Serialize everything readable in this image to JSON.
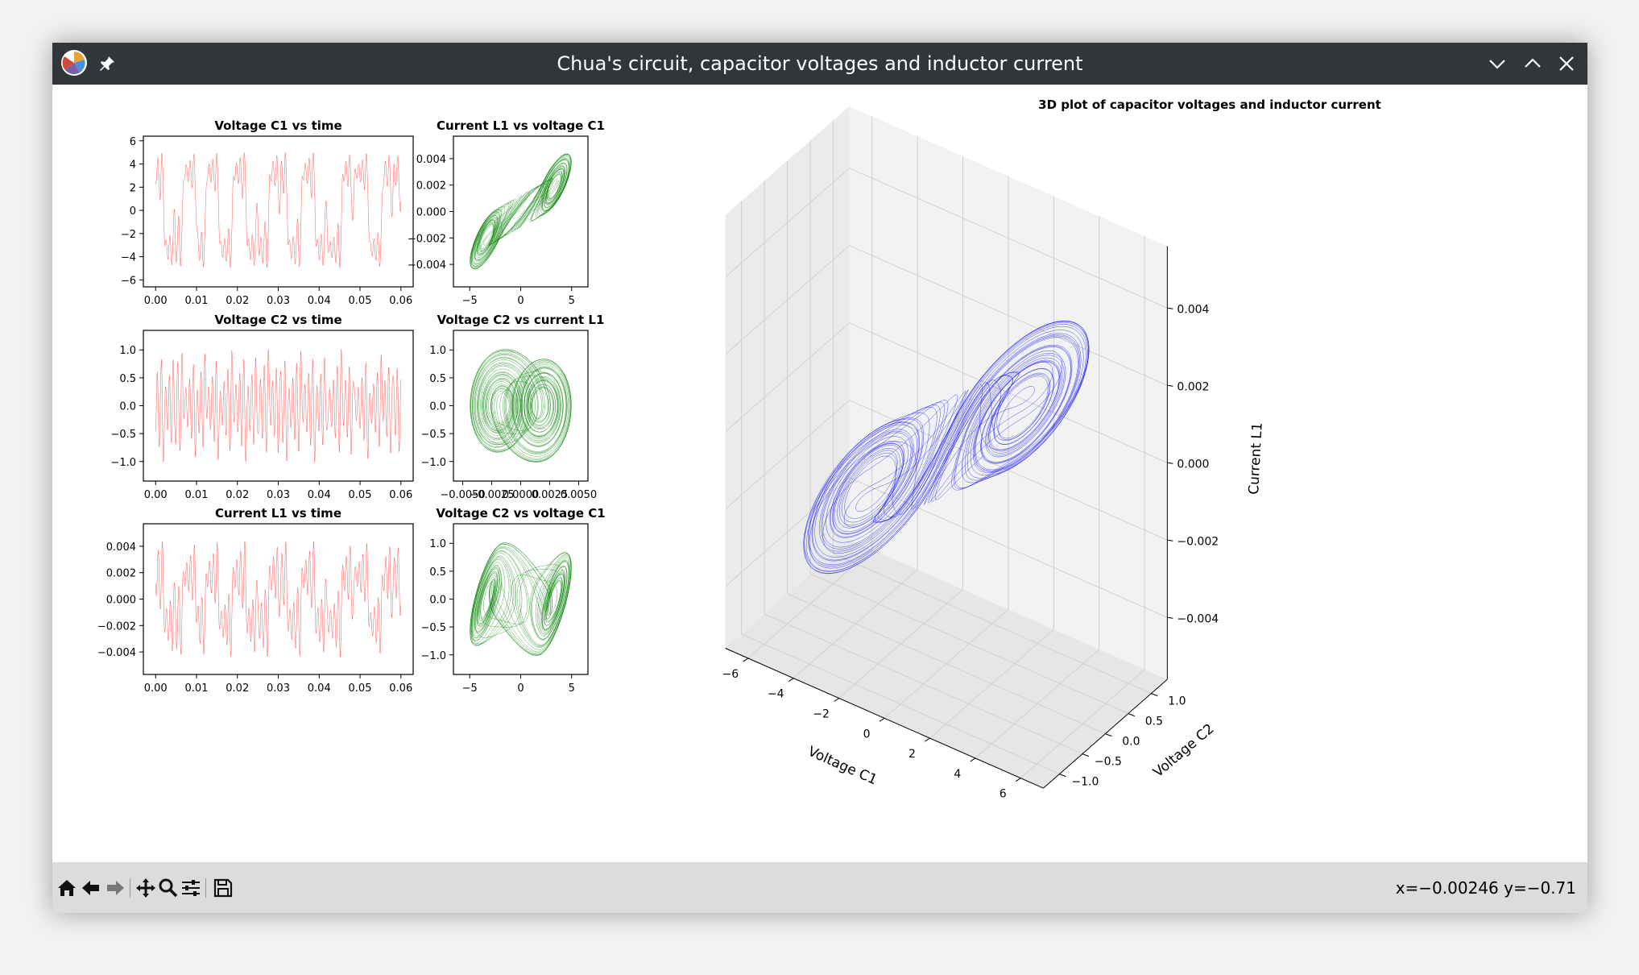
{
  "window": {
    "title": "Chua's circuit, capacitor voltages and inductor current"
  },
  "toolbar": {
    "coords": "x=−0.00246 y=−0.71",
    "tools": [
      "home-icon",
      "back-icon",
      "forward-icon",
      "pan-icon",
      "zoom-icon",
      "configure-icon",
      "save-icon"
    ]
  },
  "colors": {
    "red": "#ff0000",
    "green": "#008000",
    "blue": "#0000ff",
    "titlebar": "#31363b"
  },
  "chart_data": [
    {
      "id": "c1t",
      "type": "line",
      "title": "Voltage C1 vs time",
      "color": "#ff0000",
      "xlim": [
        -0.003,
        0.063
      ],
      "ylim": [
        -6.6,
        6.4
      ],
      "xticks": [
        "0.00",
        "0.01",
        "0.02",
        "0.03",
        "0.04",
        "0.05",
        "0.06"
      ],
      "xtickvals": [
        0,
        0.01,
        0.02,
        0.03,
        0.04,
        0.05,
        0.06
      ],
      "yticks": [
        "−6",
        "−4",
        "−2",
        "0",
        "2",
        "4",
        "6"
      ],
      "ytickvals": [
        -6,
        -4,
        -2,
        0,
        2,
        4,
        6
      ]
    },
    {
      "id": "i1c1",
      "type": "line",
      "title": "Current L1 vs voltage C1",
      "color": "#008000",
      "xlim": [
        -6.6,
        6.6
      ],
      "ylim": [
        -0.0057,
        0.0057
      ],
      "xticks": [
        "−5",
        "0",
        "5"
      ],
      "xtickvals": [
        -5,
        0,
        5
      ],
      "yticks": [
        "−0.004",
        "−0.002",
        "0.000",
        "0.002",
        "0.004"
      ],
      "ytickvals": [
        -0.004,
        -0.002,
        0,
        0.002,
        0.004
      ]
    },
    {
      "id": "c2t",
      "type": "line",
      "title": "Voltage C2 vs time",
      "color": "#ff0000",
      "xlim": [
        -0.003,
        0.063
      ],
      "ylim": [
        -1.35,
        1.35
      ],
      "xticks": [
        "0.00",
        "0.01",
        "0.02",
        "0.03",
        "0.04",
        "0.05",
        "0.06"
      ],
      "xtickvals": [
        0,
        0.01,
        0.02,
        0.03,
        0.04,
        0.05,
        0.06
      ],
      "yticks": [
        "−1.0",
        "−0.5",
        "0.0",
        "0.5",
        "1.0"
      ],
      "ytickvals": [
        -1,
        -0.5,
        0,
        0.5,
        1
      ]
    },
    {
      "id": "c2i1",
      "type": "line",
      "title": "Voltage C2 vs current L1",
      "color": "#008000",
      "xlim": [
        -0.0058,
        0.0058
      ],
      "ylim": [
        -1.35,
        1.35
      ],
      "xticks": [
        "−0.0050",
        "−0.0025",
        "0.0000",
        "0.0025",
        "0.0050"
      ],
      "xtickvals": [
        -0.005,
        -0.0025,
        0,
        0.0025,
        0.005
      ],
      "yticks": [
        "−1.0",
        "−0.5",
        "0.0",
        "0.5",
        "1.0"
      ],
      "ytickvals": [
        -1,
        -0.5,
        0,
        0.5,
        1
      ]
    },
    {
      "id": "i1t",
      "type": "line",
      "title": "Current L1 vs time",
      "color": "#ff0000",
      "xlim": [
        -0.003,
        0.063
      ],
      "ylim": [
        -0.0057,
        0.0057
      ],
      "xticks": [
        "0.00",
        "0.01",
        "0.02",
        "0.03",
        "0.04",
        "0.05",
        "0.06"
      ],
      "xtickvals": [
        0,
        0.01,
        0.02,
        0.03,
        0.04,
        0.05,
        0.06
      ],
      "yticks": [
        "−0.004",
        "−0.002",
        "0.000",
        "0.002",
        "0.004"
      ],
      "ytickvals": [
        -0.004,
        -0.002,
        0,
        0.002,
        0.004
      ]
    },
    {
      "id": "c2c1",
      "type": "line",
      "title": "Voltage C2 vs voltage C1",
      "color": "#008000",
      "xlim": [
        -6.6,
        6.6
      ],
      "ylim": [
        -1.35,
        1.35
      ],
      "xticks": [
        "−5",
        "0",
        "5"
      ],
      "xtickvals": [
        -5,
        0,
        5
      ],
      "yticks": [
        "−1.0",
        "−0.5",
        "0.0",
        "0.5",
        "1.0"
      ],
      "ytickvals": [
        -1,
        -0.5,
        0,
        0.5,
        1
      ]
    },
    {
      "id": "p3d",
      "type": "line",
      "title": "3D plot of capacitor voltages and inductor current",
      "color": "#0000ff",
      "xlabel": "Voltage C1",
      "ylabel": "Voltage C2",
      "zlabel": "Current L1",
      "xticks": [
        "−6",
        "−4",
        "−2",
        "0",
        "2",
        "4",
        "6"
      ],
      "yticks": [
        "−1.0",
        "−0.5",
        "0.0",
        "0.5",
        "1.0"
      ],
      "zticks": [
        "−0.004",
        "−0.002",
        "0.000",
        "0.002",
        "0.004"
      ]
    }
  ]
}
